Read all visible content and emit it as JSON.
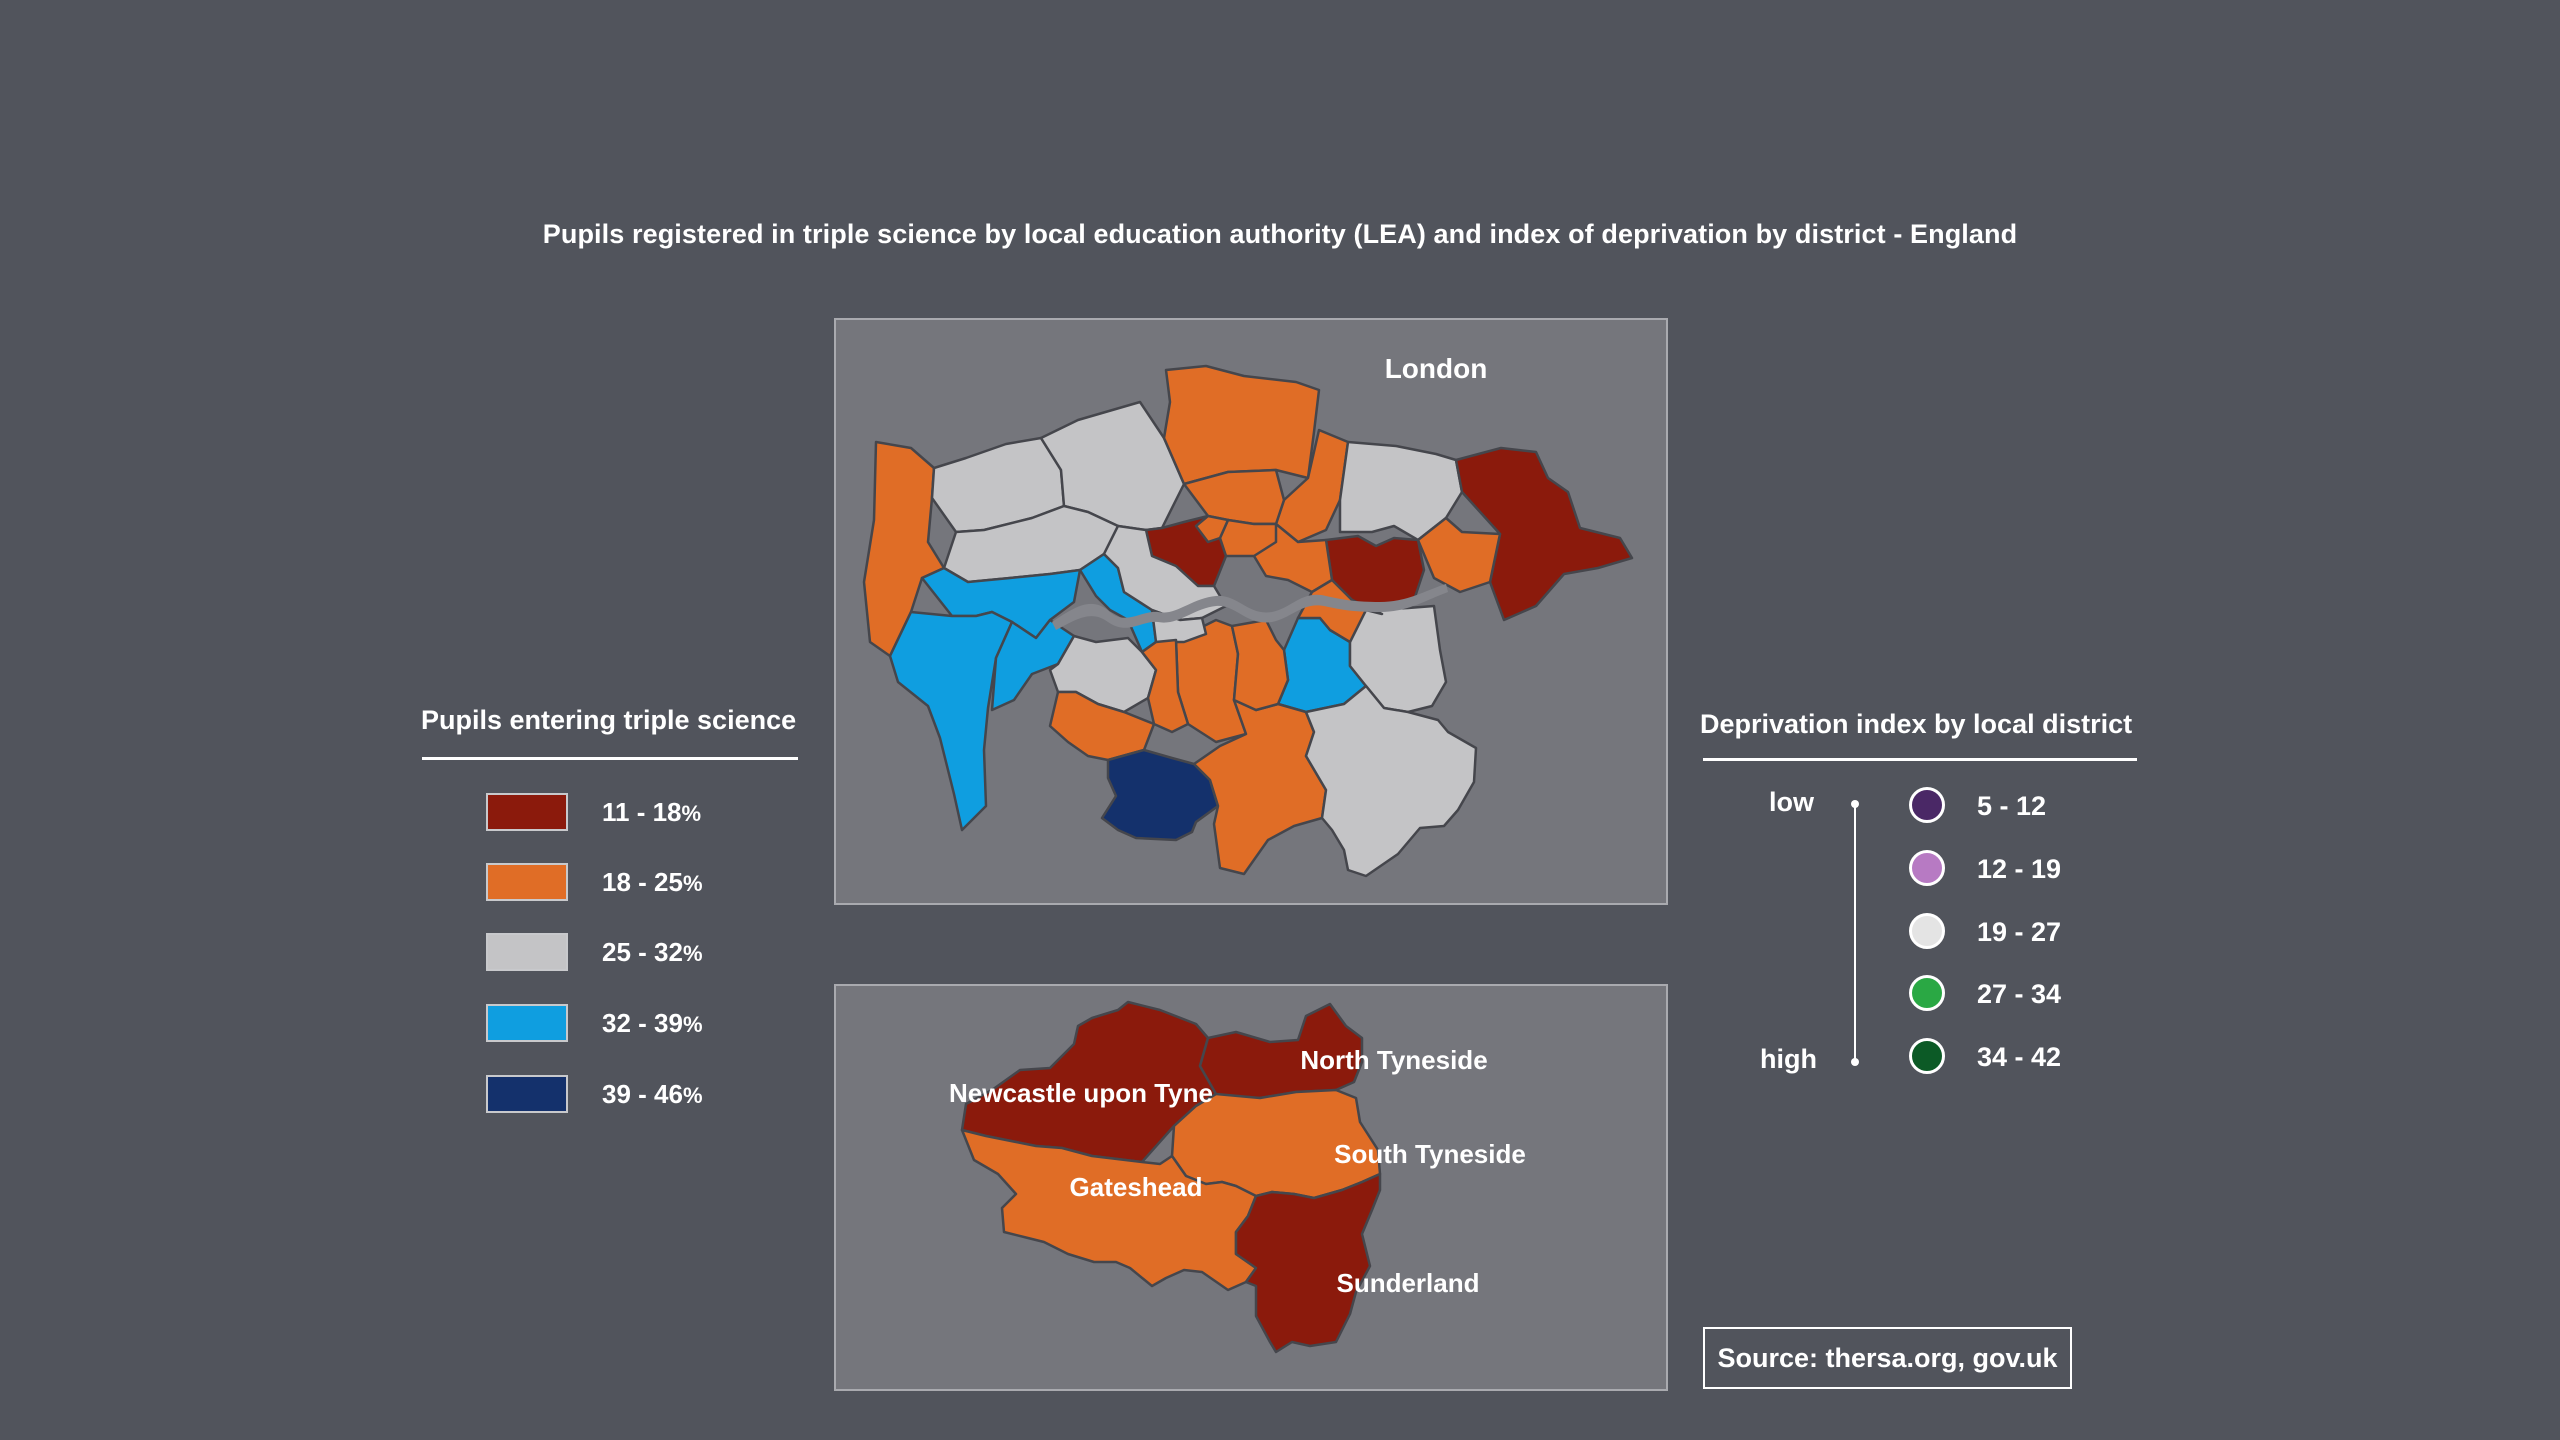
{
  "title": "Pupils registered in triple science by local education authority (LEA) and index of deprivation by district - England",
  "colors": {
    "band_11_18": "#8b1a0c",
    "band_18_25": "#e06d26",
    "band_25_32": "#c4c4c6",
    "band_32_39": "#0f9ee0",
    "band_39_46": "#14316c",
    "river": "#85868c",
    "borough_border": "#45464c"
  },
  "london_map": {
    "label": "London",
    "boroughs": [
      {
        "band": "18-25"
      },
      {
        "band": "25-32"
      },
      {
        "band": "25-32"
      },
      {
        "band": "18-25"
      },
      {
        "band": "18-25"
      },
      {
        "band": "25-32"
      },
      {
        "band": "11-18"
      },
      {
        "band": "18-25"
      },
      {
        "band": "25-32"
      },
      {
        "band": "11-18"
      },
      {
        "band": "18-25"
      },
      {
        "band": "11-18"
      },
      {
        "band": "18-25"
      },
      {
        "band": "32-39"
      },
      {
        "band": "32-39"
      },
      {
        "band": "25-32"
      },
      {
        "band": "18-25"
      },
      {
        "band": "32-39"
      },
      {
        "band": "32-39"
      },
      {
        "band": "25-32"
      },
      {
        "band": "32-39"
      },
      {
        "band": "18-25"
      },
      {
        "band": "39-46"
      },
      {
        "band": "18-25"
      },
      {
        "band": "25-32"
      },
      {
        "band": "25-32"
      },
      {
        "band": "18-25"
      },
      {
        "band": "18-25"
      },
      {
        "band": "18-25"
      },
      {
        "band": "25-32"
      },
      {
        "band": "18-25"
      },
      {
        "band": "18-25"
      }
    ]
  },
  "tyne_map": {
    "areas": [
      {
        "name": "Newcastle upon Tyne",
        "band": "11-18"
      },
      {
        "name": "North Tyneside",
        "band": "11-18"
      },
      {
        "name": "South Tyneside",
        "band": "18-25"
      },
      {
        "name": "Gateshead",
        "band": "18-25"
      },
      {
        "name": "Sunderland",
        "band": "11-18"
      }
    ]
  },
  "legend_science": {
    "heading": "Pupils entering triple science",
    "items": [
      {
        "range": "11 - 18",
        "unit": "%",
        "color": "#8b1a0c"
      },
      {
        "range": "18 - 25",
        "unit": "%",
        "color": "#e06d26"
      },
      {
        "range": "25 - 32",
        "unit": "%",
        "color": "#c4c4c6"
      },
      {
        "range": "32 - 39",
        "unit": "%",
        "color": "#0f9ee0"
      },
      {
        "range": "39 - 46",
        "unit": "%",
        "color": "#14316c"
      }
    ]
  },
  "legend_deprivation": {
    "heading": "Deprivation index by local district",
    "low_label": "low",
    "high_label": "high",
    "items": [
      {
        "range": "5 - 12",
        "color": "#4a2866"
      },
      {
        "range": "12 - 19",
        "color": "#b77ac3"
      },
      {
        "range": "19 - 27",
        "color": "#e4e4e4"
      },
      {
        "range": "27 - 34",
        "color": "#2aa844"
      },
      {
        "range": "34 - 42",
        "color": "#0c5a26"
      }
    ]
  },
  "source": "Source: thersa.org, gov.uk"
}
